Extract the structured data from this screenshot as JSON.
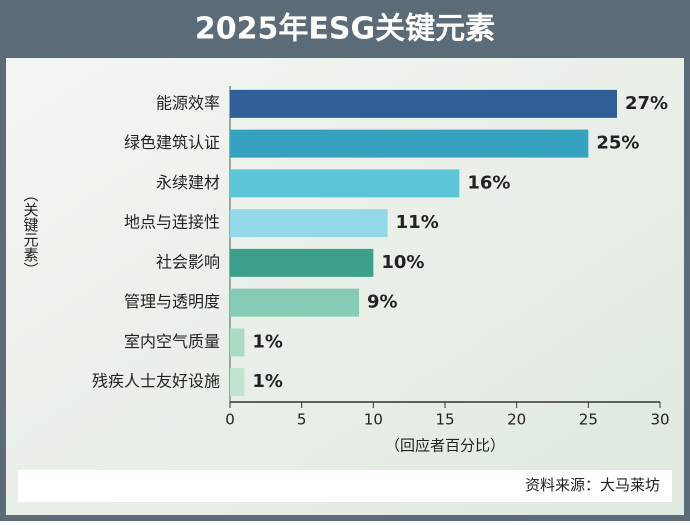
{
  "chart_data": {
    "type": "bar",
    "orientation": "horizontal",
    "title": "2025年ESG关键元素",
    "y_label": "（关键元素）",
    "x_label": "（回应者百分比）",
    "source": "资料来源：大马莱坊",
    "categories": [
      "能源效率",
      "绿色建筑认证",
      "永续建材",
      "地点与连接性",
      "社会影响",
      "管理与透明度",
      "室内空气质量",
      "残疾人士友好设施"
    ],
    "values": [
      27,
      25,
      16,
      11,
      10,
      9,
      1,
      1
    ],
    "value_labels": [
      "27%",
      "25%",
      "16%",
      "11%",
      "10%",
      "9%",
      "1%",
      "1%"
    ],
    "colors": [
      "#2f5f96",
      "#35a2bf",
      "#5cc6d6",
      "#94d9e8",
      "#3c9f8a",
      "#86cbb6",
      "#a9dcc3",
      "#bfe4cf"
    ],
    "xlim": [
      0,
      30
    ],
    "xticks": [
      0,
      5,
      10,
      15,
      20,
      25,
      30
    ]
  }
}
